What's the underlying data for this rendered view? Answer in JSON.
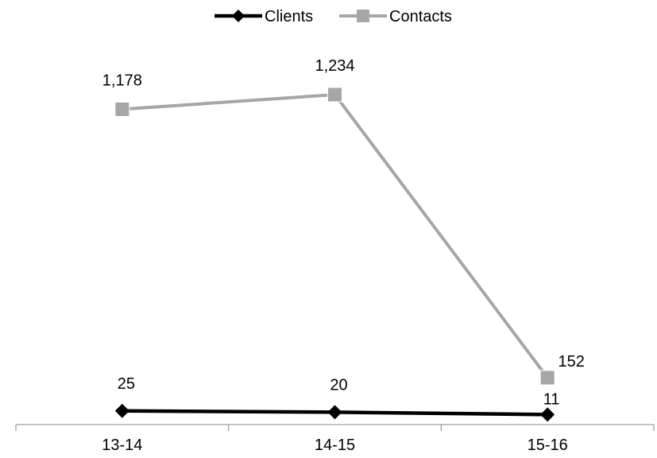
{
  "chart_data": {
    "type": "line",
    "title": "",
    "xlabel": "",
    "ylabel": "",
    "categories": [
      "13-14",
      "14-15",
      "15-16"
    ],
    "ylim": [
      0,
      1300
    ],
    "grid": false,
    "legend_position": "top-center",
    "series": [
      {
        "name": "Clients",
        "values": [
          25,
          20,
          11
        ],
        "labels": [
          "25",
          "20",
          "11"
        ],
        "color": "#000000",
        "marker": "diamond"
      },
      {
        "name": "Contacts",
        "values": [
          1178,
          1234,
          152
        ],
        "labels": [
          "1,178",
          "1,234",
          "152"
        ],
        "color": "#A6A6A6",
        "marker": "square"
      }
    ]
  }
}
